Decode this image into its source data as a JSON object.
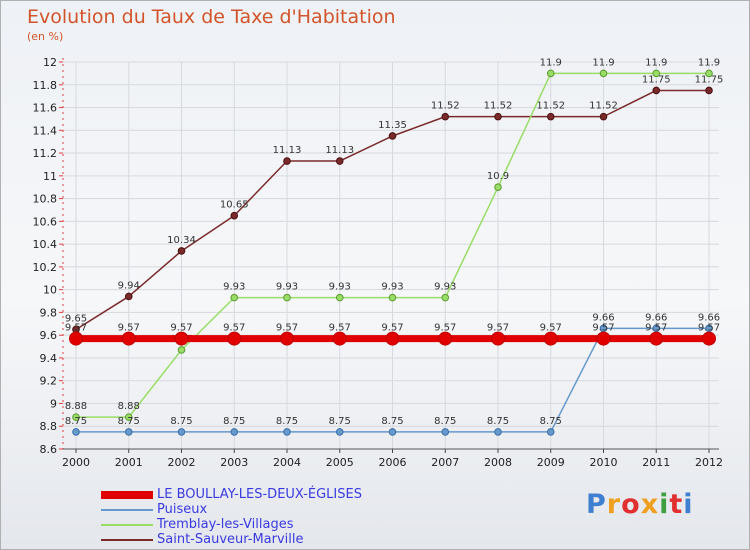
{
  "title": "Evolution du Taux de Taxe d'Habitation",
  "unit": "(en %)",
  "logo_text": "Proxiti",
  "chart_data": {
    "type": "line",
    "title": "Evolution du Taux de Taxe d'Habitation",
    "ylabel": "(en %)",
    "x": [
      "2000",
      "2001",
      "2002",
      "2003",
      "2004",
      "2005",
      "2006",
      "2007",
      "2008",
      "2009",
      "2010",
      "2011",
      "2012"
    ],
    "ylim": [
      8.6,
      12
    ],
    "yticks": [
      8.6,
      8.8,
      9,
      9.2,
      9.4,
      9.6,
      9.8,
      10,
      10.2,
      10.4,
      10.6,
      10.8,
      11,
      11.2,
      11.4,
      11.6,
      11.8,
      12
    ],
    "ytick_labels": [
      "8.6",
      "8.8",
      "9",
      "9.2",
      "9.4",
      "9.6",
      "9.8",
      "10",
      "10.2",
      "10.4",
      "10.6",
      "10.8",
      "11",
      "11.2",
      "11.4",
      "11.6",
      "11.8",
      "12"
    ],
    "grid": true,
    "legend_position": "bottom-left",
    "series": [
      {
        "name": "LE BOULLAY-LES-DEUX-ÉGLISES",
        "color": "#e00000",
        "values": [
          9.57,
          9.57,
          9.57,
          9.57,
          9.57,
          9.57,
          9.57,
          9.57,
          9.57,
          9.57,
          9.57,
          9.57,
          9.57
        ],
        "labels": [
          "9.57",
          "9.57",
          "9.57",
          "9.57",
          "9.57",
          "9.57",
          "9.57",
          "9.57",
          "9.57",
          "9.57",
          "9.57",
          "9.57",
          "9.57"
        ]
      },
      {
        "name": "Puiseux",
        "color": "#6699cc",
        "values": [
          8.75,
          8.75,
          8.75,
          8.75,
          8.75,
          8.75,
          8.75,
          8.75,
          8.75,
          8.75,
          9.66,
          9.66,
          9.66
        ],
        "labels": [
          "8.75",
          "8.75",
          "8.75",
          "8.75",
          "8.75",
          "8.75",
          "8.75",
          "8.75",
          "8.75",
          "8.75",
          "9.66",
          "9.66",
          "9.66"
        ]
      },
      {
        "name": "Tremblay-les-Villages",
        "color": "#99dd66",
        "values": [
          8.88,
          8.88,
          9.47,
          9.93,
          9.93,
          9.93,
          9.93,
          9.93,
          10.9,
          11.9,
          11.9,
          11.9,
          11.9
        ],
        "labels": [
          "8.88",
          "8.88",
          "9.47",
          "9.93",
          "9.93",
          "9.93",
          "9.93",
          "9.93",
          "10.9",
          "11.9",
          "11.9",
          "11.9",
          "11.9"
        ]
      },
      {
        "name": "Saint-Sauveur-Marville",
        "color": "#7a2a2a",
        "values": [
          9.65,
          9.94,
          10.34,
          10.65,
          11.13,
          11.13,
          11.35,
          11.52,
          11.52,
          11.52,
          11.52,
          11.75,
          11.75
        ],
        "labels": [
          "9.65",
          "9.94",
          "10.34",
          "10.65",
          "11.13",
          "11.13",
          "11.35",
          "11.52",
          "11.52",
          "11.52",
          "11.52",
          "11.75",
          "11.75"
        ]
      }
    ]
  }
}
